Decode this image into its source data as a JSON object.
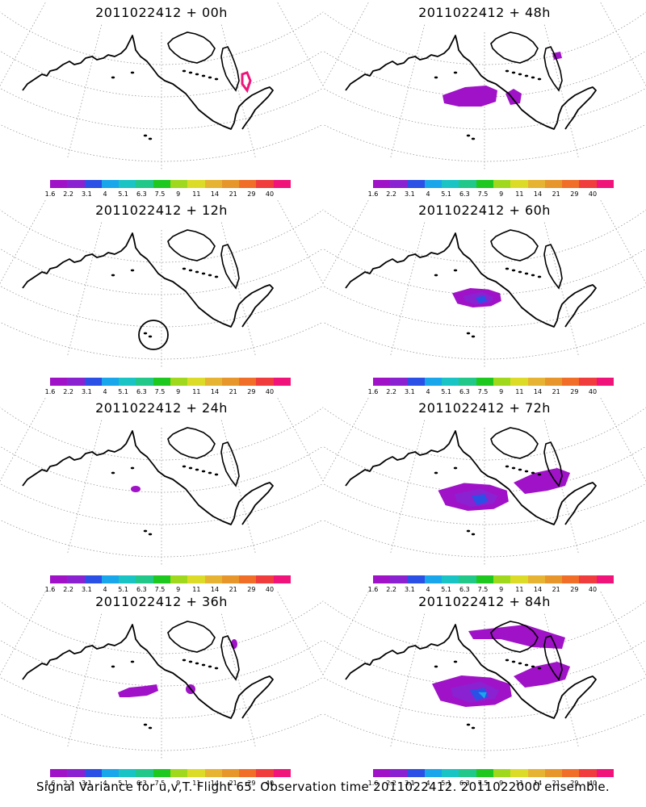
{
  "colorbar": {
    "colors": [
      "#a012c8",
      "#8a22d2",
      "#2a50e6",
      "#1aa6ea",
      "#1ac4c4",
      "#22c88a",
      "#1ec81e",
      "#a0d81e",
      "#dcdc28",
      "#e6b432",
      "#e6962a",
      "#f06e28",
      "#f03c3c",
      "#f0147a"
    ],
    "labels": [
      "1.6",
      "2.2",
      "3.1",
      "4",
      "5.1",
      "6.3",
      "7.5",
      "9",
      "11",
      "14",
      "21",
      "29",
      "40"
    ]
  },
  "panels": [
    {
      "title": "2011022412 + 00h",
      "blobs": [
        {
          "color": "#f0147a",
          "shape": "outline-small"
        }
      ]
    },
    {
      "title": "2011022412 + 48h",
      "blobs": [
        {
          "color": "#a012c8"
        }
      ]
    },
    {
      "title": "2011022412 + 12h",
      "blobs": [],
      "marker": "circle"
    },
    {
      "title": "2011022412 + 60h",
      "blobs": [
        {
          "color": "#a012c8"
        },
        {
          "color": "#8a22d2"
        },
        {
          "color": "#2a50e6"
        }
      ]
    },
    {
      "title": "2011022412 + 24h",
      "blobs": [
        {
          "color": "#a012c8"
        }
      ]
    },
    {
      "title": "2011022412 + 72h",
      "blobs": [
        {
          "color": "#a012c8"
        },
        {
          "color": "#8a22d2"
        },
        {
          "color": "#2a50e6"
        }
      ]
    },
    {
      "title": "2011022412 + 36h",
      "blobs": [
        {
          "color": "#a012c8"
        }
      ]
    },
    {
      "title": "2011022412 + 84h",
      "blobs": [
        {
          "color": "#a012c8"
        },
        {
          "color": "#8a22d2"
        },
        {
          "color": "#2a50e6"
        },
        {
          "color": "#1aa6ea"
        }
      ]
    }
  ],
  "caption": "Signal Variance for u,v,T. Flight 65. Observation time 2011022412. 2011022000 ensemble."
}
